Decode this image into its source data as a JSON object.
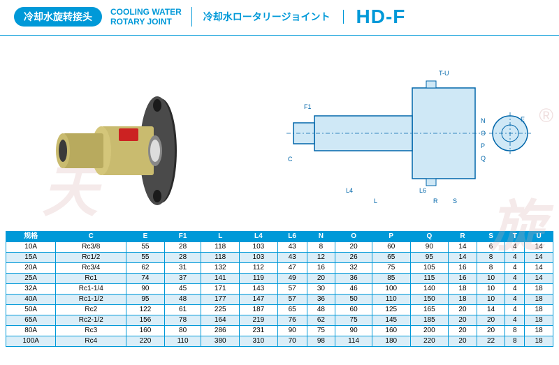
{
  "header": {
    "cn_title": "冷却水旋转接头",
    "en_title": "COOLING WATER\nROTARY JOINT",
    "jp_title": "冷却水ロータリージョイント",
    "model": "HD-F"
  },
  "watermark": {
    "text1": "天",
    "text2": "旋",
    "reg": "®"
  },
  "diagram": {
    "bg": "#cfe8f6",
    "line": "#0066aa",
    "labels": [
      "T-U",
      "F1",
      "C",
      "L4",
      "L",
      "L6",
      "R",
      "S",
      "N",
      "O",
      "P",
      "Q",
      "E"
    ]
  },
  "photo": {
    "body_color": "#c9bb6f",
    "flange_color": "#3a3a3a",
    "label_color": "#cc2222"
  },
  "table": {
    "header_row": [
      "规格",
      "C",
      "E",
      "F1",
      "L",
      "L4",
      "L6",
      "N",
      "O",
      "P",
      "Q",
      "R",
      "S",
      "T",
      "U"
    ],
    "rows": [
      [
        "10A",
        "Rc3/8",
        "55",
        "28",
        "118",
        "103",
        "43",
        "8",
        "20",
        "60",
        "90",
        "14",
        "6",
        "4",
        "14"
      ],
      [
        "15A",
        "Rc1/2",
        "55",
        "28",
        "118",
        "103",
        "43",
        "12",
        "26",
        "65",
        "95",
        "14",
        "8",
        "4",
        "14"
      ],
      [
        "20A",
        "Rc3/4",
        "62",
        "31",
        "132",
        "112",
        "47",
        "16",
        "32",
        "75",
        "105",
        "16",
        "8",
        "4",
        "14"
      ],
      [
        "25A",
        "Rc1",
        "74",
        "37",
        "141",
        "119",
        "49",
        "20",
        "36",
        "85",
        "115",
        "16",
        "10",
        "4",
        "14"
      ],
      [
        "32A",
        "Rc1-1/4",
        "90",
        "45",
        "171",
        "143",
        "57",
        "30",
        "46",
        "100",
        "140",
        "18",
        "10",
        "4",
        "18"
      ],
      [
        "40A",
        "Rc1-1/2",
        "95",
        "48",
        "177",
        "147",
        "57",
        "36",
        "50",
        "110",
        "150",
        "18",
        "10",
        "4",
        "18"
      ],
      [
        "50A",
        "Rc2",
        "122",
        "61",
        "225",
        "187",
        "65",
        "48",
        "60",
        "125",
        "165",
        "20",
        "14",
        "4",
        "18"
      ],
      [
        "65A",
        "Rc2-1/2",
        "156",
        "78",
        "164",
        "219",
        "76",
        "62",
        "75",
        "145",
        "185",
        "20",
        "20",
        "4",
        "18"
      ],
      [
        "80A",
        "Rc3",
        "160",
        "80",
        "286",
        "231",
        "90",
        "75",
        "90",
        "160",
        "200",
        "20",
        "20",
        "8",
        "18"
      ],
      [
        "100A",
        "Rc4",
        "220",
        "110",
        "380",
        "310",
        "70",
        "98",
        "114",
        "180",
        "220",
        "20",
        "22",
        "8",
        "18"
      ]
    ],
    "header_bg": "#0099d8",
    "row_alt_bg": "#dbeef8"
  }
}
